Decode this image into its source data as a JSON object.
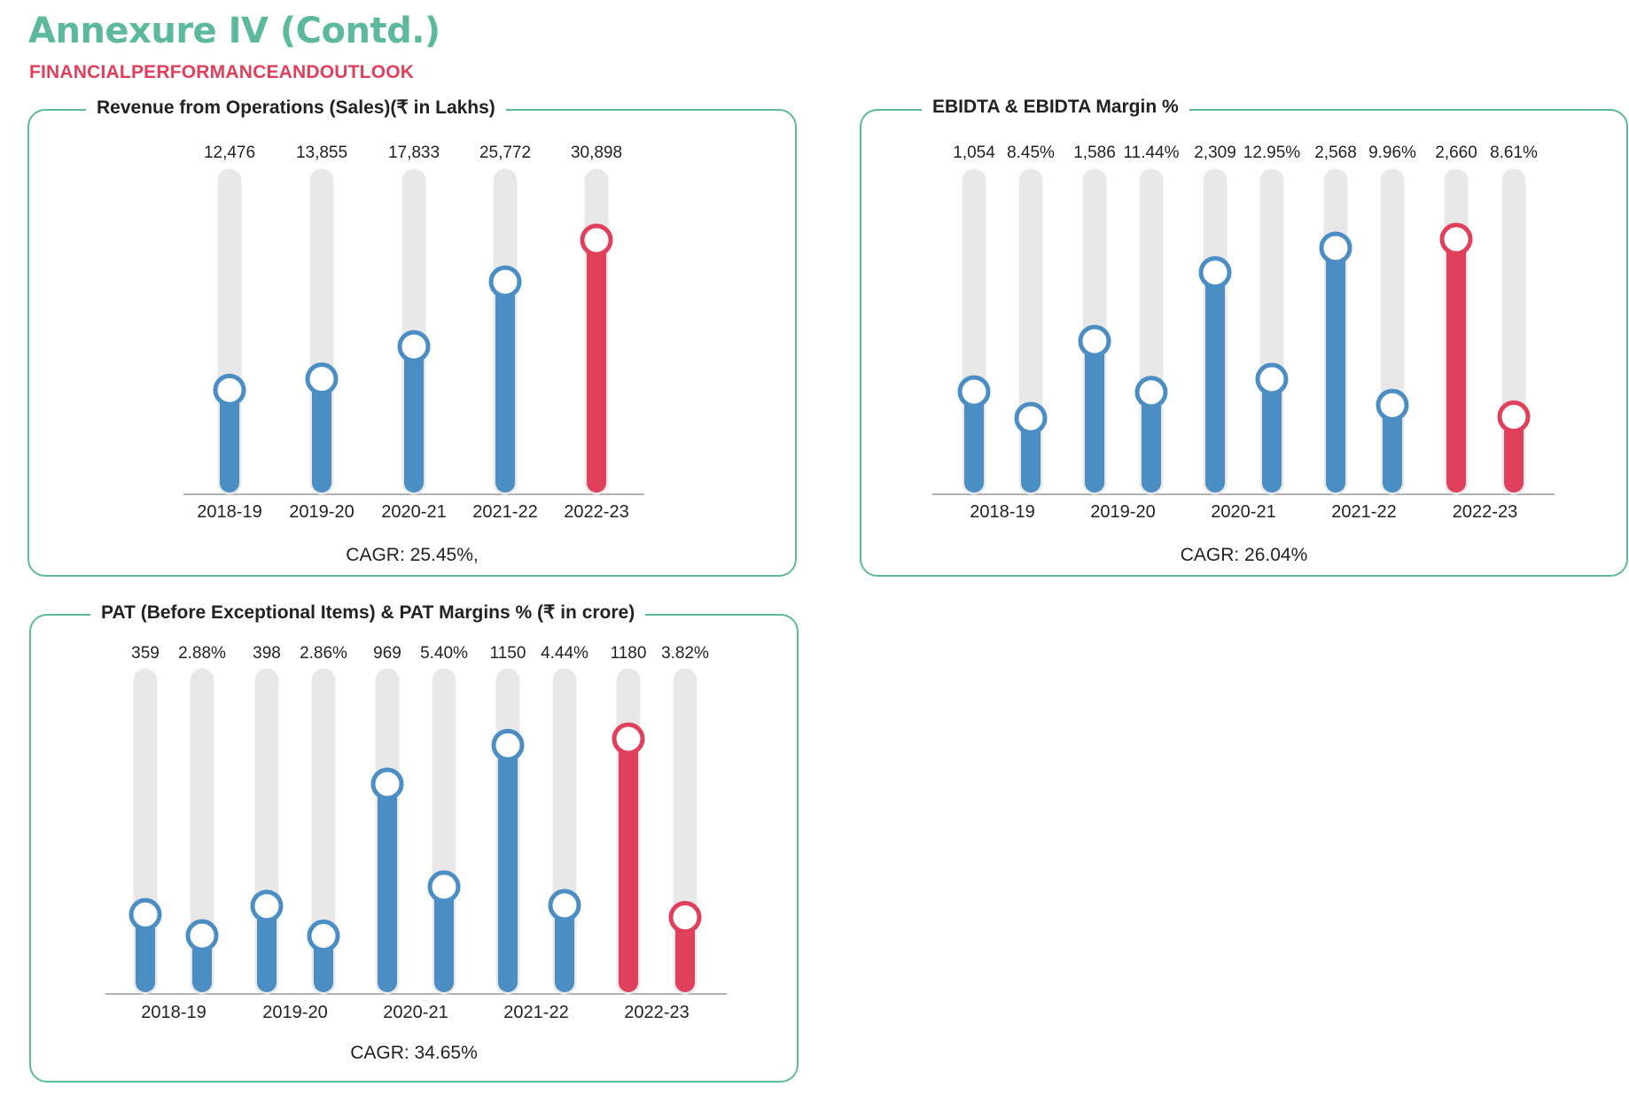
{
  "header": {
    "title": "Annexure IV (Contd.)",
    "subtitle": "FINANCIALPERFORMANCEANDOUTLOOK"
  },
  "colors": {
    "accent": "#5db99b",
    "highlight": "#e0405c",
    "bar": "#4a8ec4",
    "track": "#e8e8e8"
  },
  "chart_data": [
    {
      "type": "bar",
      "title": "Revenue from Operations (Sales)(₹ in Lakhs)",
      "categories": [
        "2018-19",
        "2019-20",
        "2020-21",
        "2021-22",
        "2022-23"
      ],
      "series": [
        {
          "values": [
            12476,
            13855,
            17833,
            25772,
            30898
          ],
          "labels": [
            "12,476",
            "13,855",
            "17,833",
            "25,772",
            "30,898"
          ]
        }
      ],
      "footer": "CAGR: 25.45%,",
      "highlight_category": "2022-23"
    },
    {
      "type": "bar",
      "title": "EBIDTA & EBIDTA Margin %",
      "categories": [
        "2018-19",
        "2019-20",
        "2020-21",
        "2021-22",
        "2022-23"
      ],
      "series": [
        {
          "values": [
            1054,
            1586,
            2309,
            2568,
            2660
          ],
          "labels": [
            "1,054",
            "1,586",
            "2,309",
            "2,568",
            "2,660"
          ]
        },
        {
          "values": [
            8.45,
            11.44,
            12.95,
            9.96,
            8.61
          ],
          "labels": [
            "8.45%",
            "11.44%",
            "12.95%",
            "9.96%",
            "8.61%"
          ]
        }
      ],
      "footer": "CAGR: 26.04%",
      "highlight_category": "2022-23"
    },
    {
      "type": "bar",
      "title": "PAT (Before Exceptional Items) & PAT Margins % (₹ in crore)",
      "categories": [
        "2018-19",
        "2019-20",
        "2020-21",
        "2021-22",
        "2022-23"
      ],
      "series": [
        {
          "values": [
            359,
            398,
            969,
            1150,
            1180
          ],
          "labels": [
            "359",
            "398",
            "969",
            "1150",
            "1180"
          ]
        },
        {
          "values": [
            2.88,
            2.86,
            5.4,
            4.44,
            3.82
          ],
          "labels": [
            "2.88%",
            "2.86%",
            "5.40%",
            "4.44%",
            "3.82%"
          ]
        }
      ],
      "footer": "CAGR: 34.65%",
      "highlight_category": "2022-23"
    }
  ]
}
